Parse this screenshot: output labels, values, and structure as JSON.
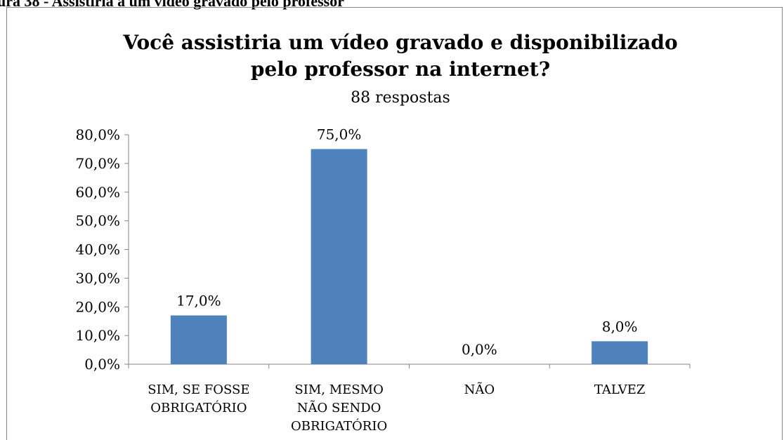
{
  "caption": "ura 38 - Assistiria a um vídeo gravado pelo professor",
  "chart_data": {
    "type": "bar",
    "title": "Você assistiria um vídeo gravado e disponibilizado\npelo professor na internet?",
    "subtitle": "88 respostas",
    "categories": [
      "SIM, SE FOSSE\nOBRIGATÓRIO",
      "SIM, MESMO\nNÃO SENDO\nOBRIGATÓRIO",
      "NÃO",
      "TALVEZ"
    ],
    "values": [
      17,
      75,
      0,
      8
    ],
    "value_labels": [
      "17,0%",
      "75,0%",
      "0,0%",
      "8,0%"
    ],
    "color": "#4f81bd",
    "ylim": [
      0,
      80
    ],
    "yticks": [
      {
        "value": 0,
        "label": "0,0%"
      },
      {
        "value": 10,
        "label": "10,0%"
      },
      {
        "value": 20,
        "label": "20,0%"
      },
      {
        "value": 30,
        "label": "30,0%"
      },
      {
        "value": 40,
        "label": "40,0%"
      },
      {
        "value": 50,
        "label": "50,0%"
      },
      {
        "value": 60,
        "label": "60,0%"
      },
      {
        "value": 70,
        "label": "70,0%"
      },
      {
        "value": 80,
        "label": "80,0%"
      }
    ],
    "grid": false
  }
}
